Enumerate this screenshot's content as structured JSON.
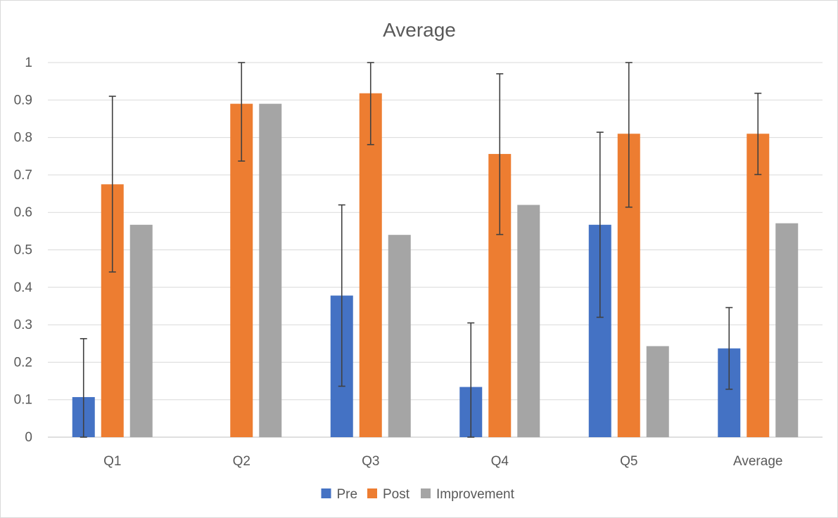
{
  "chart_data": {
    "type": "bar",
    "title": "Average",
    "xlabel": "",
    "ylabel": "",
    "categories": [
      "Q1",
      "Q2",
      "Q3",
      "Q4",
      "Q5",
      "Average"
    ],
    "ylim": [
      0,
      1
    ],
    "yticks": [
      "0",
      "0.1",
      "0.2",
      "0.3",
      "0.4",
      "0.5",
      "0.6",
      "0.7",
      "0.8",
      "0.9",
      "1"
    ],
    "grid": true,
    "legend_position": "bottom",
    "series": [
      {
        "name": "Pre",
        "color": "#4472c4",
        "values": [
          0.107,
          0.0,
          0.378,
          0.134,
          0.567,
          0.237
        ],
        "error": [
          [
            0.0,
            0.263
          ],
          null,
          [
            0.136,
            0.62
          ],
          [
            0.0,
            0.305
          ],
          [
            0.32,
            0.814
          ],
          [
            0.128,
            0.346
          ]
        ]
      },
      {
        "name": "Post",
        "color": "#ed7d31",
        "values": [
          0.675,
          0.89,
          0.918,
          0.756,
          0.81,
          0.81
        ],
        "error": [
          [
            0.441,
            0.91
          ],
          [
            0.737,
            1.0
          ],
          [
            0.781,
            1.0
          ],
          [
            0.541,
            0.97
          ],
          [
            0.614,
            1.0
          ],
          [
            0.701,
            0.918
          ]
        ]
      },
      {
        "name": "Improvement",
        "color": "#a5a5a5",
        "values": [
          0.567,
          0.89,
          0.54,
          0.62,
          0.243,
          0.571
        ],
        "error": [
          null,
          null,
          null,
          null,
          null,
          null
        ]
      }
    ]
  }
}
